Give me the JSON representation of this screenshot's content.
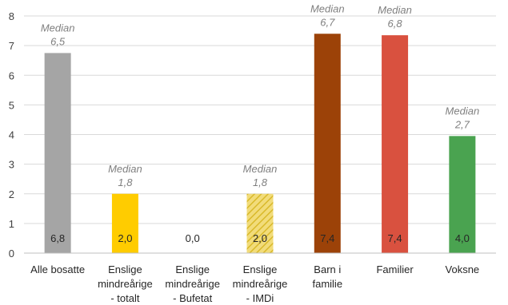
{
  "chart_data": {
    "type": "bar",
    "categories": [
      [
        "Alle bosatte"
      ],
      [
        "Enslige",
        "mindreårige",
        "- totalt"
      ],
      [
        "Enslige",
        "mindreårige",
        "- Bufetat"
      ],
      [
        "Enslige",
        "mindreårige",
        "- IMDi"
      ],
      [
        "Barn i",
        "familie"
      ],
      [
        "Familier"
      ],
      [
        "Voksne"
      ]
    ],
    "values": [
      6.75,
      2.0,
      0.0,
      2.0,
      7.4,
      7.35,
      3.95
    ],
    "data_labels": [
      "6,8",
      "2,0",
      "0,0",
      "2,0",
      "7,4",
      "7,4",
      "4,0"
    ],
    "annotations": [
      {
        "index": 0,
        "lines": [
          "Median",
          "6,5"
        ]
      },
      {
        "index": 1,
        "lines": [
          "Median",
          "1,8"
        ]
      },
      {
        "index": 3,
        "lines": [
          "Median",
          "1,8"
        ]
      },
      {
        "index": 4,
        "lines": [
          "Median",
          "6,7"
        ]
      },
      {
        "index": 5,
        "lines": [
          "Median",
          "6,8"
        ]
      },
      {
        "index": 6,
        "lines": [
          "Median",
          "2,7"
        ]
      }
    ],
    "colors": [
      "#a5a5a5",
      "#ffcc00",
      "#ffcc00",
      "#e8c84a",
      "#9c4208",
      "#d9513f",
      "#4aa350"
    ],
    "hatched": [
      false,
      false,
      false,
      true,
      false,
      false,
      false
    ],
    "ylim": [
      0,
      8
    ],
    "yticks": [
      "0",
      "1",
      "2",
      "3",
      "4",
      "5",
      "6",
      "7",
      "8"
    ],
    "grid": true,
    "legend": "none"
  }
}
